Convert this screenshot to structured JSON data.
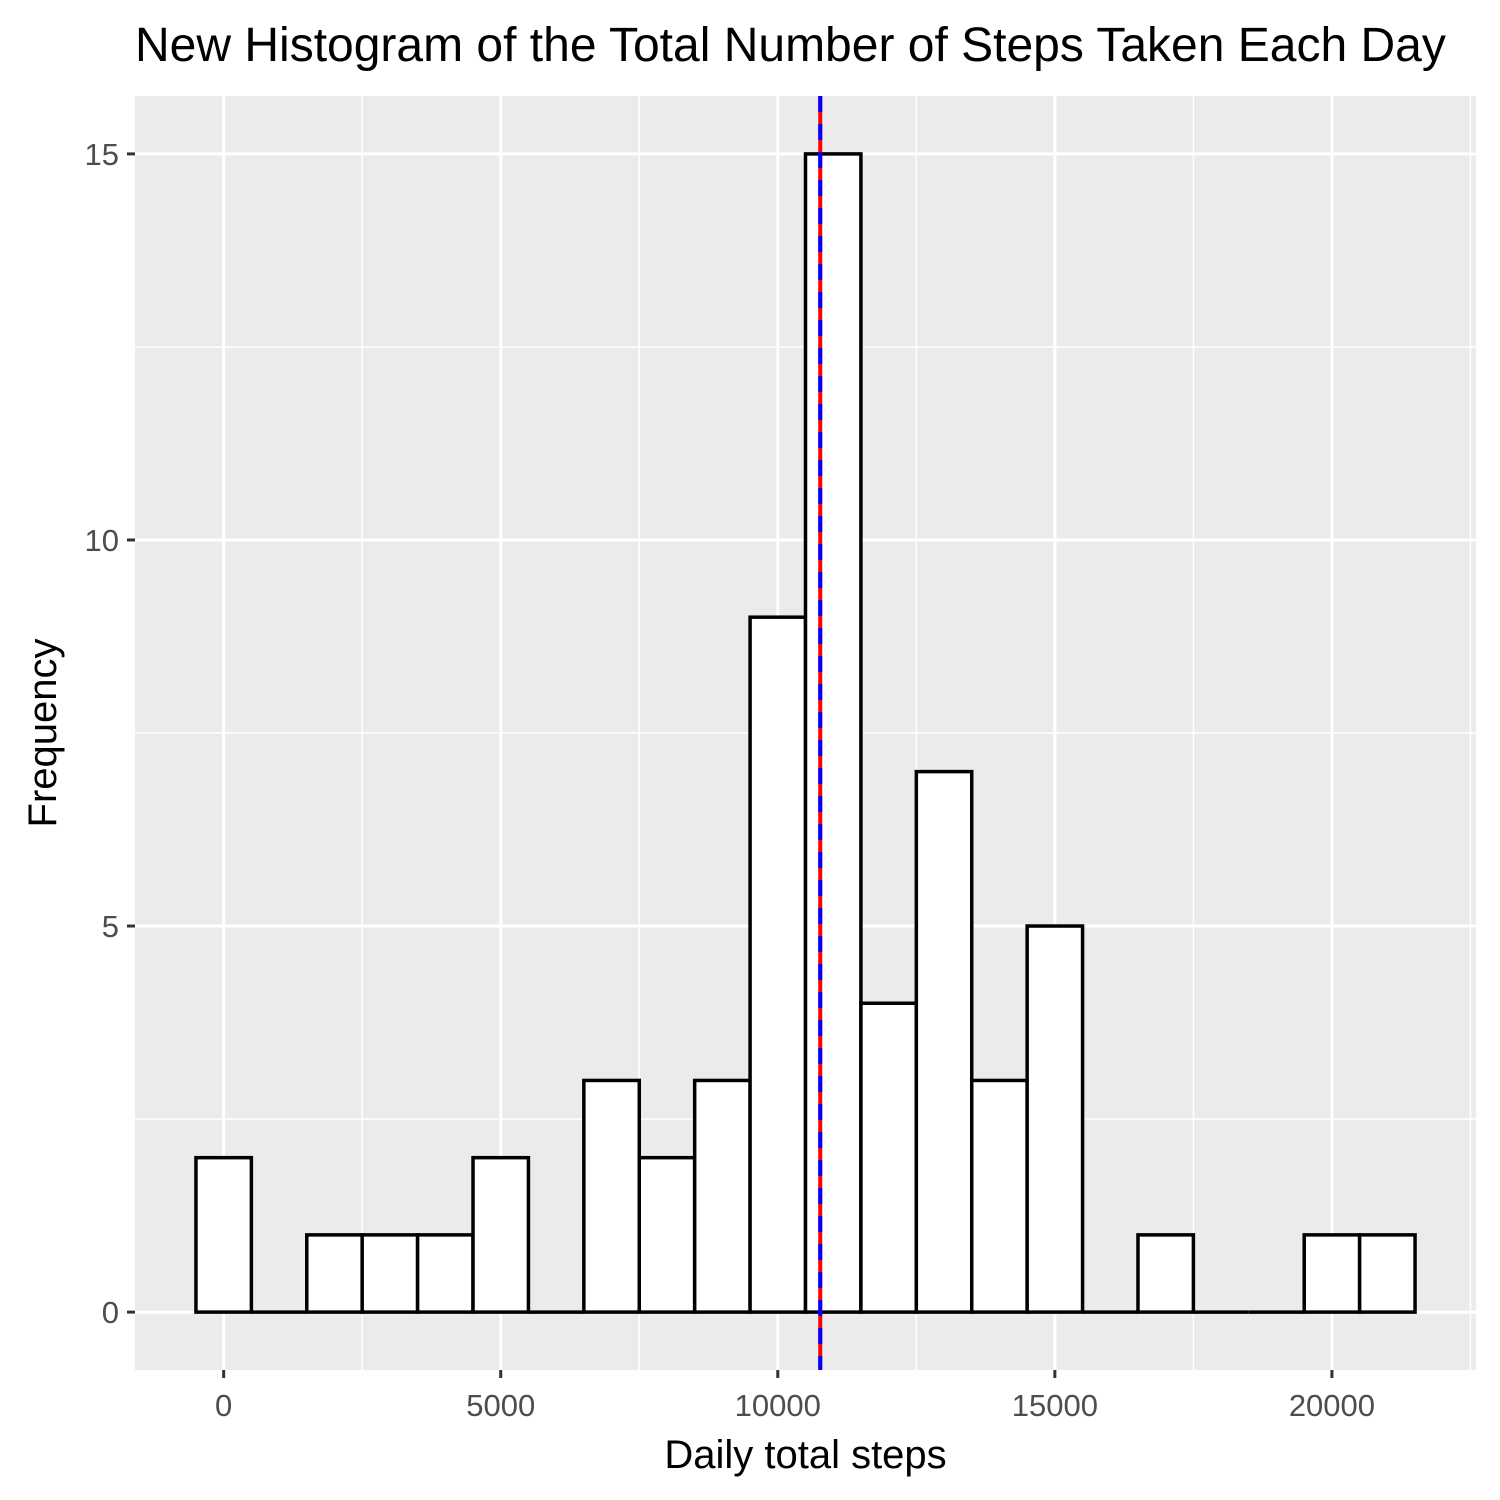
{
  "chart_data": {
    "type": "histogram",
    "title": "New Histogram of the Total Number of Steps Taken Each Day",
    "xlabel": "Daily total steps",
    "ylabel": "Frequency",
    "bin_width": 1000,
    "bins": [
      {
        "x_start": -500,
        "x_end": 500,
        "count": 2
      },
      {
        "x_start": 500,
        "x_end": 1500,
        "count": 0
      },
      {
        "x_start": 1500,
        "x_end": 2500,
        "count": 1
      },
      {
        "x_start": 2500,
        "x_end": 3500,
        "count": 1
      },
      {
        "x_start": 3500,
        "x_end": 4500,
        "count": 1
      },
      {
        "x_start": 4500,
        "x_end": 5500,
        "count": 2
      },
      {
        "x_start": 5500,
        "x_end": 6500,
        "count": 0
      },
      {
        "x_start": 6500,
        "x_end": 7500,
        "count": 3
      },
      {
        "x_start": 7500,
        "x_end": 8500,
        "count": 2
      },
      {
        "x_start": 8500,
        "x_end": 9500,
        "count": 3
      },
      {
        "x_start": 9500,
        "x_end": 10500,
        "count": 9
      },
      {
        "x_start": 10500,
        "x_end": 11500,
        "count": 15
      },
      {
        "x_start": 11500,
        "x_end": 12500,
        "count": 4
      },
      {
        "x_start": 12500,
        "x_end": 13500,
        "count": 7
      },
      {
        "x_start": 13500,
        "x_end": 14500,
        "count": 3
      },
      {
        "x_start": 14500,
        "x_end": 15500,
        "count": 5
      },
      {
        "x_start": 15500,
        "x_end": 16500,
        "count": 0
      },
      {
        "x_start": 16500,
        "x_end": 17500,
        "count": 1
      },
      {
        "x_start": 17500,
        "x_end": 18500,
        "count": 0
      },
      {
        "x_start": 18500,
        "x_end": 19500,
        "count": 0
      },
      {
        "x_start": 19500,
        "x_end": 20500,
        "count": 1
      },
      {
        "x_start": 20500,
        "x_end": 21500,
        "count": 1
      }
    ],
    "reference_lines": [
      {
        "x": 10766,
        "color": "#ff0000",
        "style": "solid"
      },
      {
        "x": 10766,
        "color": "#0000ff",
        "style": "dashed"
      }
    ],
    "xlim": [
      -1600,
      22600
    ],
    "ylim": [
      -0.75,
      15.75
    ],
    "x_ticks": [
      0,
      5000,
      10000,
      15000,
      20000
    ],
    "x_tick_labels": [
      "0",
      "5000",
      "10000",
      "15000",
      "20000"
    ],
    "y_ticks": [
      0,
      5,
      10,
      15
    ],
    "y_tick_labels": [
      "0",
      "5",
      "10",
      "15"
    ],
    "grid": true,
    "legend": "none",
    "colors": {
      "panel_background": "#ebebeb",
      "grid": "#ffffff",
      "bar_fill": "#ffffff",
      "bar_outline": "#000000"
    }
  }
}
